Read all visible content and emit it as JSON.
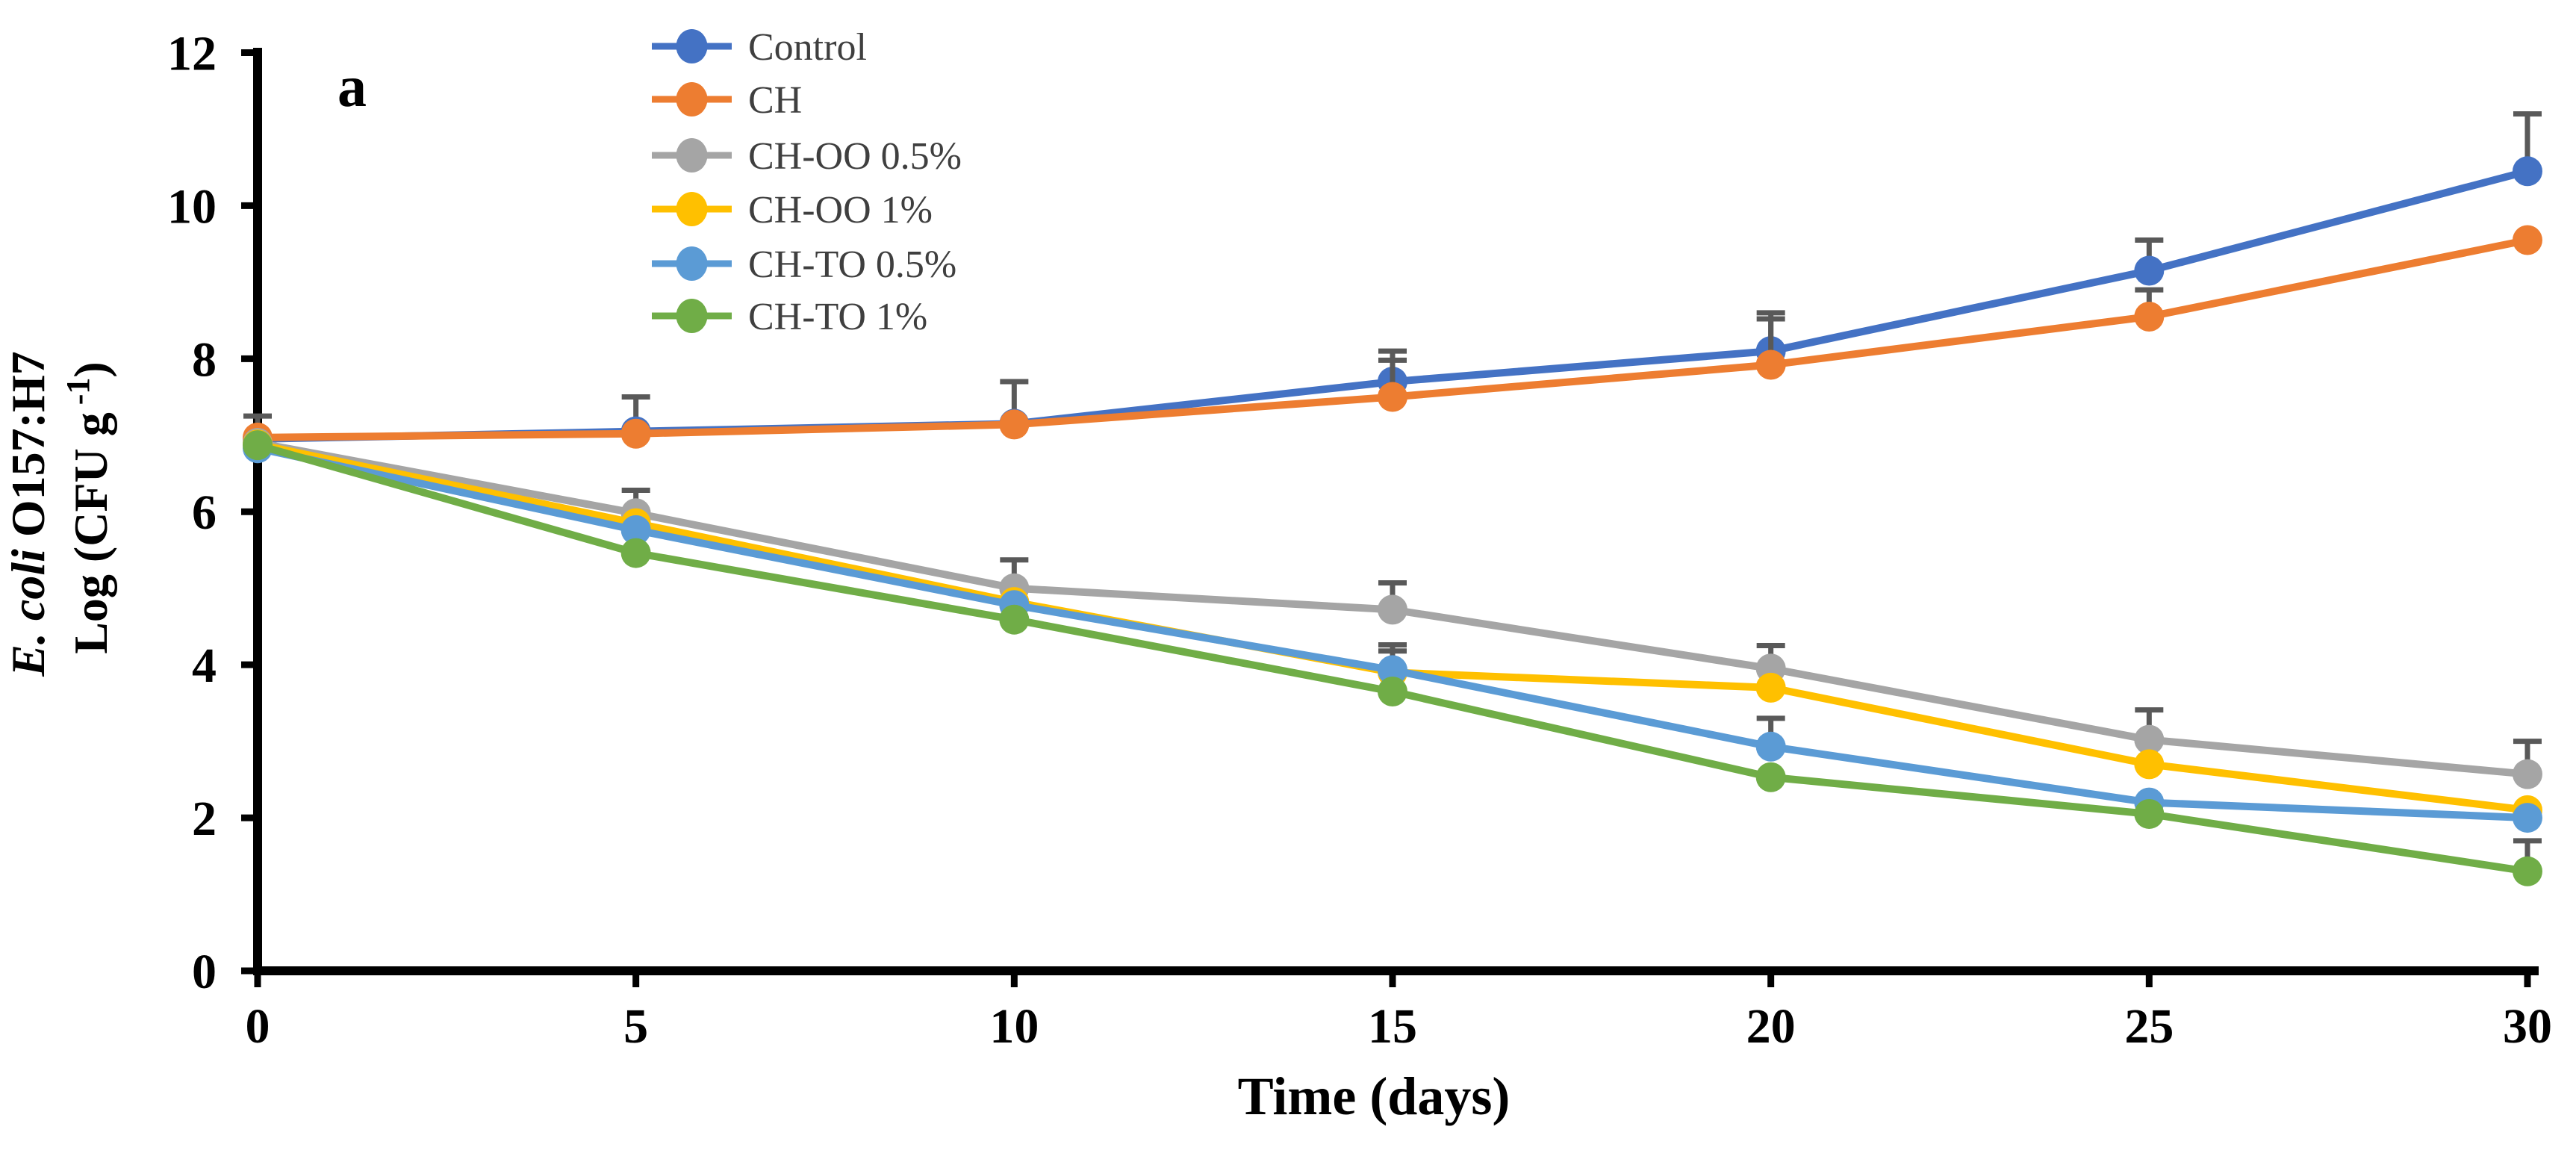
{
  "panel_label": "a",
  "axes": {
    "x_title": "Time (days)",
    "y_title_line1_italic": "E. coli",
    "y_title_line1_rest": " O157:H7",
    "y_title_line2_pre": "Log (CFU g",
    "y_title_line2_sup": "-1",
    "y_title_line2_post": ")",
    "x_ticks": [
      0,
      5,
      10,
      15,
      20,
      25,
      30
    ],
    "y_ticks": [
      0,
      2,
      4,
      6,
      8,
      10,
      12
    ]
  },
  "chart_data": {
    "type": "line",
    "title": "",
    "xlabel": "Time (days)",
    "ylabel": "E. coli O157:H7 Log (CFU g -1)",
    "x": [
      0,
      5,
      10,
      15,
      20,
      25,
      30
    ],
    "xlim": [
      0,
      30
    ],
    "ylim": [
      0,
      12
    ],
    "grid": false,
    "legend_position": "inside-top-left",
    "axis_color": "#000000",
    "error_bar_color": "#595959",
    "legend_text_color": "#3F3F3F",
    "series": [
      {
        "name": "Control",
        "color": "#4472C4",
        "values": [
          6.95,
          7.05,
          7.15,
          7.7,
          8.1,
          9.15,
          10.45
        ],
        "err_up": [
          0.3,
          0.45,
          0.55,
          0.4,
          0.5,
          0.4,
          0.75
        ]
      },
      {
        "name": "CH",
        "color": "#ED7D31",
        "values": [
          6.97,
          7.02,
          7.14,
          7.5,
          7.92,
          8.55,
          9.55
        ],
        "err_up": [
          0,
          0,
          0,
          0.48,
          0.6,
          0.35,
          0
        ]
      },
      {
        "name": "CH-OO 0.5%",
        "color": "#A5A5A5",
        "values": [
          6.9,
          5.98,
          5.0,
          4.72,
          3.95,
          3.02,
          2.57
        ],
        "err_up": [
          0,
          0.3,
          0.37,
          0.35,
          0.3,
          0.39,
          0.43
        ]
      },
      {
        "name": "CH-OO 1%",
        "color": "#FFC000",
        "values": [
          6.88,
          5.85,
          4.82,
          3.9,
          3.7,
          2.7,
          2.1
        ],
        "err_up": [
          0,
          0,
          0,
          0.36,
          0,
          0,
          0
        ]
      },
      {
        "name": "CH-TO 0.5%",
        "color": "#5B9BD5",
        "values": [
          6.83,
          5.76,
          4.78,
          3.93,
          2.93,
          2.2,
          2.0
        ],
        "err_up": [
          0,
          0,
          0,
          0.25,
          0.37,
          0,
          0
        ]
      },
      {
        "name": "CH-TO 1%",
        "color": "#70AD47",
        "values": [
          6.87,
          5.46,
          4.59,
          3.65,
          2.53,
          2.05,
          1.3
        ],
        "err_up": [
          0,
          0,
          0,
          0,
          0,
          0,
          0.4
        ]
      }
    ]
  }
}
